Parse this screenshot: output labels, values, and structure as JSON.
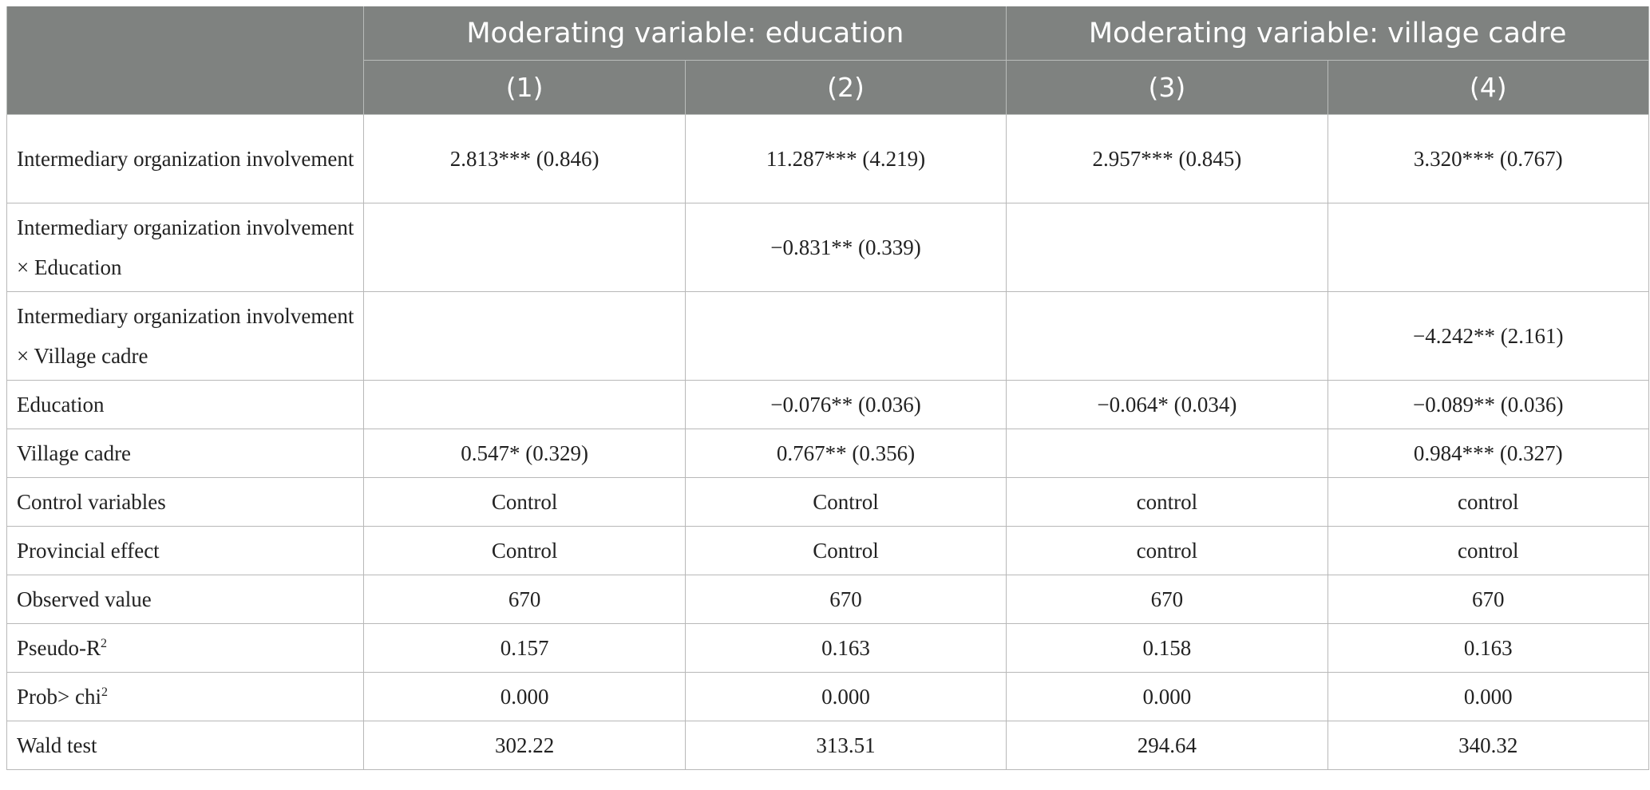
{
  "header": {
    "group_left": "Moderating variable: education",
    "group_right": "Moderating variable: village cadre",
    "columns": [
      "(1)",
      "(2)",
      "(3)",
      "(4)"
    ]
  },
  "rows": [
    {
      "label": "Intermediary organization involvement",
      "cells": [
        "2.813*** (0.846)",
        "11.287*** (4.219)",
        "2.957*** (0.845)",
        "3.320*** (0.767)"
      ]
    },
    {
      "label": "Intermediary organization involvement × Education",
      "cells": [
        "",
        "−0.831** (0.339)",
        "",
        ""
      ]
    },
    {
      "label": "Intermediary organization involvement × Village cadre",
      "cells": [
        "",
        "",
        "",
        "−4.242** (2.161)"
      ]
    },
    {
      "label": "Education",
      "cells": [
        "",
        "−0.076** (0.036)",
        "−0.064* (0.034)",
        "−0.089** (0.036)"
      ]
    },
    {
      "label": "Village cadre",
      "cells": [
        "0.547* (0.329)",
        "0.767** (0.356)",
        "",
        "0.984*** (0.327)"
      ]
    },
    {
      "label": "Control variables",
      "cells": [
        "Control",
        "Control",
        "control",
        "control"
      ]
    },
    {
      "label": "Provincial effect",
      "cells": [
        "Control",
        "Control",
        "control",
        "control"
      ]
    },
    {
      "label": "Observed value",
      "cells": [
        "670",
        "670",
        "670",
        "670"
      ]
    },
    {
      "label_base": "Pseudo-R",
      "label_sup": "2",
      "cells": [
        "0.157",
        "0.163",
        "0.158",
        "0.163"
      ]
    },
    {
      "label_base": "Prob> chi",
      "label_sup": "2",
      "cells": [
        "0.000",
        "0.000",
        "0.000",
        "0.000"
      ]
    },
    {
      "label": "Wald test",
      "cells": [
        "302.22",
        "313.51",
        "294.64",
        "340.32"
      ]
    }
  ]
}
